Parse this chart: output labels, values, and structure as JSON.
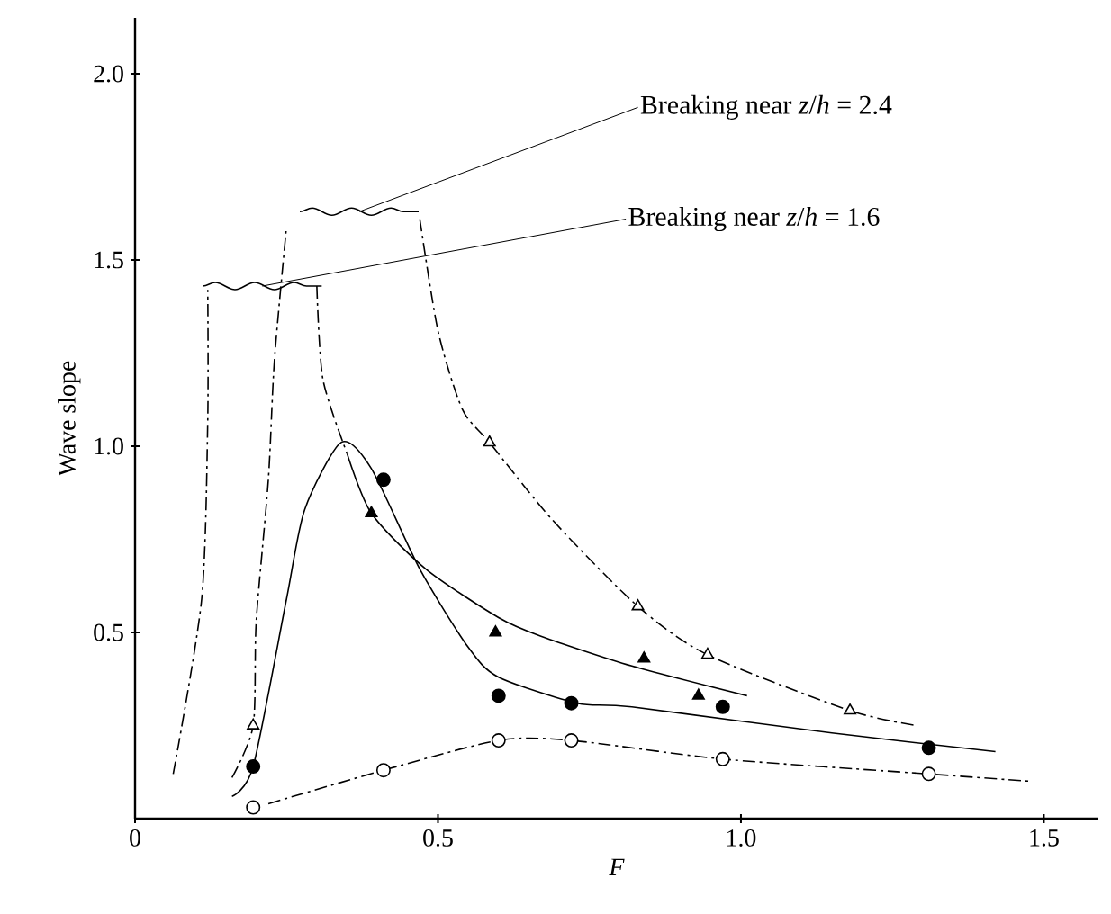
{
  "chart_data": {
    "type": "scatter",
    "xlabel": "*F*",
    "ylabel": "Wave slope",
    "xlim": [
      0,
      1.59
    ],
    "ylim": [
      0,
      2.15
    ],
    "xticks": [
      {
        "value": 0,
        "label": "0"
      },
      {
        "value": 0.5,
        "label": "0.5"
      },
      {
        "value": 1.0,
        "label": "1.0"
      },
      {
        "value": 1.5,
        "label": "1.5"
      }
    ],
    "yticks": [
      {
        "value": 0.5,
        "label": "0.5"
      },
      {
        "value": 1.0,
        "label": "1.0"
      },
      {
        "value": 1.5,
        "label": "1.5"
      },
      {
        "value": 2.0,
        "label": "2.0"
      }
    ],
    "grid": false,
    "annotations": [
      "Breaking near *z*/*h* = 2.4",
      "Breaking near *z*/*h* = 1.6"
    ],
    "series": [
      {
        "marker": "circle",
        "color": "#ffffff",
        "x": [
          0.195,
          0.41,
          0.6,
          0.72,
          0.97,
          1.31
        ],
        "values": [
          0.03,
          0.13,
          0.21,
          0.21,
          0.16,
          0.12
        ]
      },
      {
        "marker": "circle",
        "color": "#000000",
        "x": [
          0.195,
          0.41,
          0.6,
          0.72,
          0.97,
          1.31
        ],
        "values": [
          0.14,
          0.91,
          0.33,
          0.31,
          0.3,
          0.19
        ]
      },
      {
        "marker": "triangle",
        "color": "#000000",
        "x": [
          0.39,
          0.595,
          0.84,
          0.93
        ],
        "values": [
          0.82,
          0.5,
          0.43,
          0.33
        ]
      },
      {
        "marker": "triangle",
        "color": "#ffffff",
        "x": [
          0.195,
          0.585,
          0.83,
          0.945,
          1.18
        ],
        "values": [
          0.25,
          1.01,
          0.57,
          0.44,
          0.29
        ]
      },
      {
        "type": "line",
        "line_style": "solid",
        "color": "#000000",
        "x": [
          0.16,
          0.195,
          0.25,
          0.28,
          0.34,
          0.39,
          0.47,
          0.55,
          0.6,
          0.73,
          0.82,
          1.15,
          1.42
        ],
        "values": [
          0.06,
          0.14,
          0.59,
          0.83,
          1.01,
          0.94,
          0.67,
          0.46,
          0.38,
          0.31,
          0.3,
          0.23,
          0.18
        ]
      },
      {
        "type": "line",
        "line_style": "dashed",
        "color": "#000000",
        "x": [
          0.063,
          0.11,
          0.12,
          0.12
        ],
        "values": [
          0.12,
          0.59,
          1.07,
          1.42
        ]
      },
      {
        "type": "line",
        "line_style": "dashed",
        "color": "#000000",
        "x": [
          0.16,
          0.195,
          0.2,
          0.22,
          0.23,
          0.25
        ],
        "values": [
          0.11,
          0.25,
          0.53,
          0.91,
          1.23,
          1.59
        ]
      },
      {
        "type": "line",
        "line_style": "dashed",
        "color": "#000000",
        "x": [
          0.3,
          0.31,
          0.35
        ],
        "values": [
          1.43,
          1.18,
          0.98
        ]
      },
      {
        "type": "line",
        "line_style": "solid",
        "color": "#000000",
        "x": [
          0.35,
          0.39,
          0.48,
          0.6,
          0.67,
          0.82,
          1.01
        ],
        "values": [
          0.98,
          0.82,
          0.67,
          0.54,
          0.49,
          0.41,
          0.33
        ]
      },
      {
        "type": "line",
        "line_style": "dashed",
        "color": "#000000",
        "x": [
          0.47,
          0.5,
          0.54,
          0.585,
          0.69,
          0.83,
          0.945,
          1.18,
          1.29
        ],
        "values": [
          1.61,
          1.31,
          1.1,
          1.01,
          0.8,
          0.57,
          0.44,
          0.29,
          0.25
        ]
      },
      {
        "type": "line",
        "line_style": "dashed",
        "color": "#000000",
        "x": [
          0.22,
          0.41,
          0.6,
          0.72,
          0.97,
          1.31,
          1.48
        ],
        "values": [
          0.04,
          0.13,
          0.21,
          0.21,
          0.16,
          0.12,
          0.1
        ]
      }
    ]
  }
}
